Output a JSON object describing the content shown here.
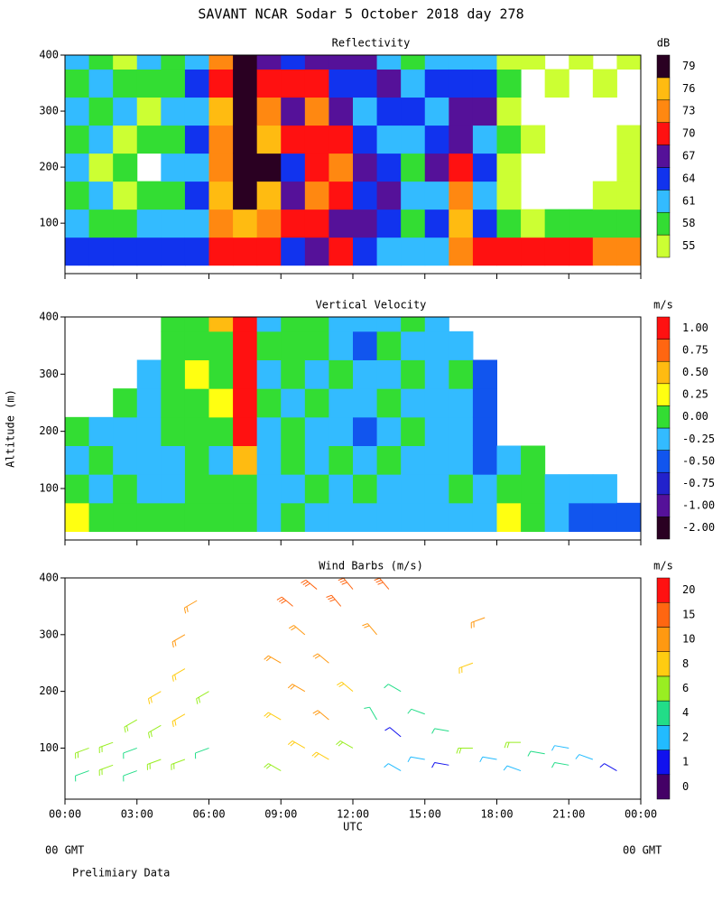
{
  "title": "SAVANT  NCAR Sodar   5 October 2018  day 278",
  "footer_left": "00 GMT",
  "footer_right": "00 GMT",
  "note": "Prelimiary Data",
  "chart_data": [
    {
      "type": "heatmap",
      "title": "Reflectivity",
      "colorbar_title": "dB",
      "xlim": [
        0,
        24
      ],
      "ylim": [
        10,
        400
      ],
      "yticks": [
        100,
        200,
        300,
        400
      ],
      "x": [
        0.5,
        1.5,
        2.5,
        3.5,
        4.5,
        5.5,
        6.5,
        7.5,
        8.5,
        9.5,
        10.5,
        11.5,
        12.5,
        13.5,
        14.5,
        15.5,
        16.5,
        17.5,
        18.5,
        19.5,
        20.5,
        21.5,
        22.5,
        23.5
      ],
      "y": [
        50,
        100,
        150,
        200,
        250,
        300,
        350,
        400
      ],
      "levels": [
        55,
        58,
        61,
        64,
        67,
        70,
        73,
        76,
        79
      ],
      "colors": [
        "#ccff33",
        "#33dd33",
        "#33bbff",
        "#1133ee",
        "#551199",
        "#ff1111",
        "#ff8811",
        "#ffbb11",
        "#2a0022"
      ],
      "values": [
        [
          64,
          61,
          58,
          61,
          58,
          61,
          58,
          61
        ],
        [
          64,
          58,
          61,
          55,
          61,
          58,
          61,
          58
        ],
        [
          64,
          58,
          55,
          58,
          55,
          61,
          58,
          55
        ],
        [
          64,
          61,
          58,
          null,
          58,
          55,
          58,
          61
        ],
        [
          64,
          61,
          58,
          61,
          58,
          61,
          58,
          58
        ],
        [
          64,
          61,
          64,
          61,
          64,
          61,
          64,
          61
        ],
        [
          70,
          73,
          76,
          73,
          73,
          76,
          70,
          73
        ],
        [
          70,
          76,
          79,
          79,
          79,
          79,
          79,
          79
        ],
        [
          70,
          73,
          76,
          79,
          76,
          73,
          70,
          67
        ],
        [
          64,
          70,
          67,
          64,
          70,
          67,
          70,
          64
        ],
        [
          67,
          70,
          73,
          70,
          70,
          73,
          70,
          67
        ],
        [
          70,
          67,
          70,
          73,
          70,
          67,
          64,
          67
        ],
        [
          64,
          67,
          64,
          67,
          64,
          61,
          64,
          67
        ],
        [
          61,
          64,
          67,
          64,
          61,
          64,
          67,
          61
        ],
        [
          61,
          58,
          61,
          58,
          61,
          64,
          61,
          58
        ],
        [
          61,
          64,
          61,
          67,
          64,
          61,
          64,
          61
        ],
        [
          73,
          76,
          73,
          70,
          67,
          67,
          64,
          61
        ],
        [
          70,
          64,
          61,
          64,
          61,
          67,
          64,
          61
        ],
        [
          70,
          58,
          55,
          55,
          58,
          55,
          58,
          55
        ],
        [
          70,
          55,
          null,
          null,
          55,
          null,
          null,
          55
        ],
        [
          70,
          58,
          null,
          null,
          null,
          null,
          55,
          null
        ],
        [
          70,
          58,
          null,
          null,
          null,
          null,
          null,
          55
        ],
        [
          73,
          58,
          55,
          null,
          null,
          null,
          55,
          null
        ],
        [
          73,
          58,
          55,
          55,
          55,
          null,
          null,
          55
        ]
      ]
    },
    {
      "type": "heatmap",
      "title": "Vertical Velocity",
      "colorbar_title": "m/s",
      "ylabel": "Altitude (m)",
      "xlim": [
        0,
        24
      ],
      "ylim": [
        10,
        400
      ],
      "yticks": [
        100,
        200,
        300,
        400
      ],
      "x": [
        0.5,
        1.5,
        2.5,
        3.5,
        4.5,
        5.5,
        6.5,
        7.5,
        8.5,
        9.5,
        10.5,
        11.5,
        12.5,
        13.5,
        14.5,
        15.5,
        16.5,
        17.5,
        18.5,
        19.5,
        20.5,
        21.5,
        22.5,
        23.5
      ],
      "y": [
        50,
        100,
        150,
        200,
        250,
        300,
        350,
        400
      ],
      "levels": [
        {
          "value": -2,
          "label": "-2.00"
        },
        {
          "value": -1,
          "label": "-1.00"
        },
        {
          "value": -0.75,
          "label": "-0.75"
        },
        {
          "value": -0.5,
          "label": "-0.50"
        },
        {
          "value": -0.25,
          "label": "-0.25"
        },
        {
          "value": 0,
          "label": "0.00"
        },
        {
          "value": 0.25,
          "label": "0.25"
        },
        {
          "value": 0.5,
          "label": "0.50"
        },
        {
          "value": 0.75,
          "label": "0.75"
        },
        {
          "value": 1,
          "label": "1.00"
        }
      ],
      "colors": [
        "#2a0022",
        "#551199",
        "#2222cc",
        "#1155ee",
        "#33bbff",
        "#33dd33",
        "#ffff11",
        "#ffbb11",
        "#ff6611",
        "#ff1111"
      ],
      "values": [
        [
          0.25,
          0,
          -0.25,
          0,
          null,
          null,
          null,
          null
        ],
        [
          0,
          -0.25,
          0,
          -0.25,
          null,
          null,
          null,
          null
        ],
        [
          0,
          0,
          -0.25,
          -0.25,
          0,
          null,
          null,
          null
        ],
        [
          0,
          -0.25,
          -0.25,
          -0.25,
          -0.25,
          -0.25,
          null,
          null
        ],
        [
          0,
          -0.25,
          -0.25,
          0,
          0,
          0,
          0,
          0
        ],
        [
          0,
          0,
          0,
          0,
          0,
          0.25,
          0,
          0
        ],
        [
          0,
          0,
          -0.25,
          0,
          0.25,
          0,
          0,
          0.5
        ],
        [
          0,
          0,
          0.5,
          1,
          1,
          1,
          1,
          1
        ],
        [
          -0.25,
          -0.25,
          -0.25,
          -0.25,
          0,
          -0.25,
          0,
          -0.25
        ],
        [
          0,
          -0.25,
          0,
          0,
          -0.25,
          0,
          0,
          0
        ],
        [
          -0.25,
          0,
          -0.25,
          -0.25,
          0,
          -0.25,
          0,
          0
        ],
        [
          -0.25,
          -0.25,
          0,
          -0.25,
          -0.25,
          0,
          -0.25,
          -0.25
        ],
        [
          -0.25,
          0,
          -0.25,
          -0.5,
          -0.25,
          -0.25,
          -0.5,
          -0.25
        ],
        [
          -0.25,
          -0.25,
          0,
          -0.25,
          0,
          -0.25,
          0,
          -0.25
        ],
        [
          -0.25,
          -0.25,
          -0.25,
          0,
          -0.25,
          0,
          -0.25,
          0
        ],
        [
          -0.25,
          -0.25,
          -0.25,
          -0.25,
          -0.25,
          -0.25,
          -0.25,
          -0.25
        ],
        [
          -0.25,
          0,
          -0.25,
          -0.25,
          -0.25,
          0,
          -0.25,
          null
        ],
        [
          -0.25,
          -0.25,
          -0.5,
          -0.5,
          -0.5,
          -0.5,
          null,
          null
        ],
        [
          0.25,
          0,
          -0.25,
          null,
          null,
          null,
          null,
          null
        ],
        [
          0,
          0,
          0,
          null,
          null,
          null,
          null,
          null
        ],
        [
          -0.25,
          -0.25,
          null,
          null,
          null,
          null,
          null,
          null
        ],
        [
          -0.5,
          -0.25,
          null,
          null,
          null,
          null,
          null,
          null
        ],
        [
          -0.5,
          -0.25,
          null,
          null,
          null,
          null,
          null,
          null
        ],
        [
          -0.5,
          null,
          null,
          null,
          null,
          null,
          null,
          null
        ]
      ]
    },
    {
      "type": "barbs",
      "title": "Wind Barbs (m/s)",
      "colorbar_title": "m/s",
      "xlabel": "UTC",
      "xlim": [
        0,
        24
      ],
      "ylim": [
        10,
        400
      ],
      "yticks": [
        100,
        200,
        300,
        400
      ],
      "xticks": [
        {
          "value": 0,
          "label": "00:00"
        },
        {
          "value": 3,
          "label": "03:00"
        },
        {
          "value": 6,
          "label": "06:00"
        },
        {
          "value": 9,
          "label": "09:00"
        },
        {
          "value": 12,
          "label": "12:00"
        },
        {
          "value": 15,
          "label": "15:00"
        },
        {
          "value": 18,
          "label": "18:00"
        },
        {
          "value": 21,
          "label": "21:00"
        },
        {
          "value": 24,
          "label": "00:00"
        }
      ],
      "levels": [
        0,
        1,
        2,
        4,
        6,
        8,
        10,
        15,
        20
      ],
      "colors": [
        "#440066",
        "#1111ee",
        "#22bbff",
        "#22dd88",
        "#99ee22",
        "#ffcc11",
        "#ff9911",
        "#ff6611",
        "#ff1111"
      ],
      "x": [
        1,
        1,
        2,
        2,
        3,
        3,
        3,
        4,
        4,
        4,
        5,
        5,
        5,
        5,
        5.5,
        6,
        6,
        9,
        9,
        9,
        9.5,
        10,
        10,
        10,
        10.5,
        11,
        11,
        11,
        11.5,
        12,
        12,
        12,
        13,
        13,
        13.5,
        14,
        14,
        14,
        15,
        15,
        16,
        16,
        17,
        17,
        17.5,
        18,
        19,
        19,
        20,
        21,
        21,
        22,
        23
      ],
      "y": [
        60,
        100,
        70,
        110,
        60,
        100,
        150,
        80,
        140,
        200,
        80,
        160,
        240,
        300,
        360,
        100,
        200,
        60,
        150,
        250,
        350,
        100,
        200,
        300,
        380,
        80,
        150,
        250,
        350,
        100,
        200,
        380,
        150,
        300,
        380,
        60,
        120,
        200,
        80,
        160,
        70,
        130,
        100,
        250,
        330,
        80,
        60,
        110,
        90,
        70,
        100,
        80,
        60
      ],
      "speed": [
        4,
        6,
        6,
        6,
        4,
        4,
        6,
        6,
        6,
        8,
        6,
        8,
        8,
        10,
        10,
        4,
        6,
        6,
        8,
        10,
        15,
        8,
        10,
        10,
        15,
        8,
        10,
        10,
        15,
        6,
        8,
        15,
        4,
        10,
        15,
        2,
        1,
        4,
        2,
        4,
        1,
        4,
        6,
        8,
        10,
        2,
        2,
        6,
        4,
        4,
        2,
        2,
        1
      ],
      "direction": [
        250,
        250,
        250,
        250,
        250,
        250,
        240,
        250,
        240,
        240,
        250,
        240,
        240,
        240,
        240,
        250,
        240,
        300,
        300,
        300,
        310,
        300,
        300,
        310,
        310,
        300,
        310,
        310,
        320,
        300,
        310,
        320,
        330,
        320,
        320,
        300,
        310,
        300,
        280,
        290,
        280,
        280,
        270,
        250,
        250,
        280,
        290,
        270,
        280,
        280,
        280,
        290,
        300
      ]
    }
  ]
}
